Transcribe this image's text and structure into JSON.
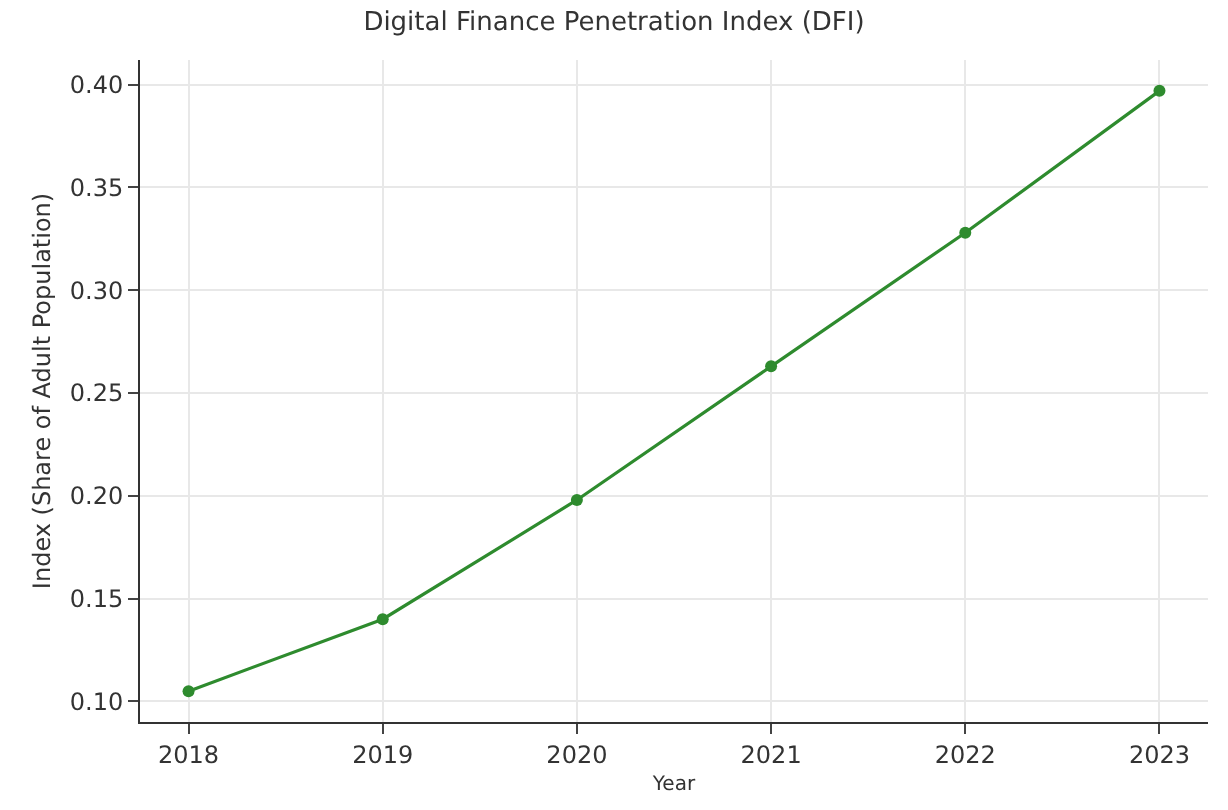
{
  "chart_data": {
    "type": "line",
    "title": "Digital Finance Penetration Index (DFI)",
    "xlabel": "Year",
    "ylabel": "Index (Share of Adult Population)",
    "x": [
      2018,
      2019,
      2020,
      2021,
      2022,
      2023
    ],
    "series": [
      {
        "color": "#2e8b2e",
        "values": [
          0.105,
          0.14,
          0.198,
          0.263,
          0.328,
          0.397
        ]
      }
    ],
    "xlim": [
      2017.75,
      2023.25
    ],
    "xticks": [
      2018,
      2019,
      2020,
      2021,
      2022,
      2023
    ],
    "ylim": [
      0.09,
      0.412
    ],
    "yticks": [
      {
        "value": 0.1,
        "label": "0.10"
      },
      {
        "value": 0.15,
        "label": "0.15"
      },
      {
        "value": 0.2,
        "label": "0.20"
      },
      {
        "value": 0.25,
        "label": "0.25"
      },
      {
        "value": 0.3,
        "label": "0.30"
      },
      {
        "value": 0.35,
        "label": "0.35"
      },
      {
        "value": 0.4,
        "label": "0.40"
      }
    ],
    "grid": true,
    "marker": "circle",
    "line_style": "solid"
  }
}
